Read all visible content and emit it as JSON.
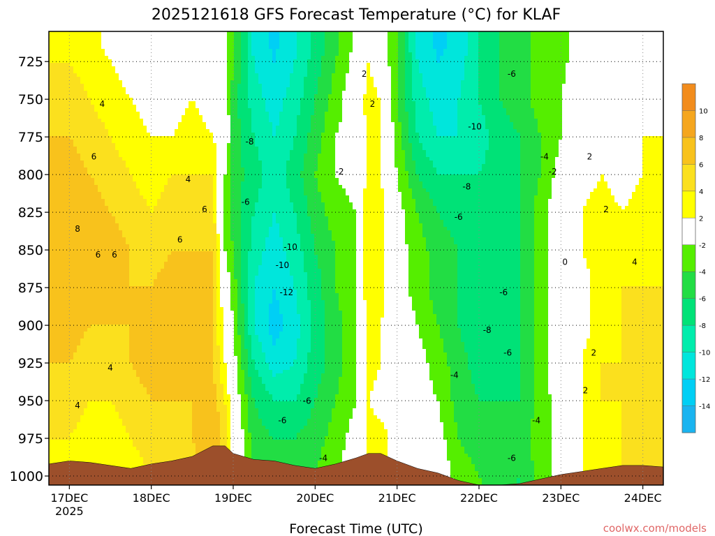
{
  "chart_data": {
    "type": "heatmap",
    "title": "2025121618 GFS Forecast Temperature (°C) for KLAF",
    "xlabel": "Forecast Time (UTC)",
    "ylabel": "",
    "credit": "coolwx.com/models",
    "x_ticks": [
      {
        "label": "17DEC",
        "sublabel": "2025",
        "day": 17
      },
      {
        "label": "18DEC",
        "sublabel": "",
        "day": 18
      },
      {
        "label": "19DEC",
        "sublabel": "",
        "day": 19
      },
      {
        "label": "20DEC",
        "sublabel": "",
        "day": 20
      },
      {
        "label": "21DEC",
        "sublabel": "",
        "day": 21
      },
      {
        "label": "22DEC",
        "sublabel": "",
        "day": 22
      },
      {
        "label": "23DEC",
        "sublabel": "",
        "day": 23
      },
      {
        "label": "24DEC",
        "sublabel": "",
        "day": 24
      }
    ],
    "xlim_days": [
      16.75,
      24.25
    ],
    "y_ticks": [
      725,
      750,
      775,
      800,
      825,
      850,
      875,
      900,
      925,
      950,
      975,
      1000
    ],
    "ylim_hpa": [
      705,
      1006
    ],
    "grid": true,
    "colorbar_ticks": [
      10,
      8,
      6,
      4,
      2,
      -2,
      -4,
      -6,
      -8,
      -10,
      -12,
      -14
    ],
    "colorbar_bins": [
      {
        "color": "#f28c1c"
      },
      {
        "color": "#f5a61e"
      },
      {
        "color": "#f8c21c"
      },
      {
        "color": "#fbe01e"
      },
      {
        "color": "#ffff00"
      },
      {
        "color": "#ffffff"
      },
      {
        "color": "#55ee00"
      },
      {
        "color": "#22dd44"
      },
      {
        "color": "#00e277"
      },
      {
        "color": "#00edac"
      },
      {
        "color": "#00e6dc"
      },
      {
        "color": "#00cff5"
      },
      {
        "color": "#1ab4f0"
      }
    ],
    "terrain_color": "#9c4f2b",
    "columns": [
      {
        "day": 16.75,
        "sfc": 992,
        "t": [
          4,
          5,
          6,
          7,
          8,
          8,
          8,
          7,
          6,
          5,
          4,
          3
        ]
      },
      {
        "day": 17.0,
        "sfc": 990,
        "t": [
          4,
          5,
          6,
          7,
          7,
          8,
          7,
          7,
          6,
          5,
          4,
          3
        ]
      },
      {
        "day": 17.25,
        "sfc": 991,
        "t": [
          3,
          4,
          5,
          6,
          7,
          7,
          7,
          6,
          5,
          4,
          3,
          2
        ]
      },
      {
        "day": 17.5,
        "sfc": 993,
        "t": [
          2,
          3,
          4,
          5,
          6,
          7,
          6,
          6,
          5,
          4,
          3,
          2
        ]
      },
      {
        "day": 17.75,
        "sfc": 995,
        "t": [
          1,
          2,
          3,
          4,
          5,
          6,
          6,
          6,
          6,
          5,
          4,
          3
        ]
      },
      {
        "day": 18.0,
        "sfc": 992,
        "t": [
          1,
          1,
          2,
          3,
          4,
          5,
          6,
          6,
          7,
          6,
          5,
          4
        ]
      },
      {
        "day": 18.25,
        "sfc": 990,
        "t": [
          1,
          1,
          2,
          4,
          5,
          6,
          7,
          7,
          7,
          6,
          5,
          4
        ]
      },
      {
        "day": 18.5,
        "sfc": 987,
        "t": [
          2,
          2,
          3,
          4,
          5,
          6,
          7,
          7,
          7,
          6,
          6,
          5
        ]
      },
      {
        "day": 18.75,
        "sfc": 980,
        "t": [
          1,
          1,
          2,
          4,
          5,
          6,
          6,
          6,
          6,
          7,
          8,
          8
        ]
      },
      {
        "day": 18.9,
        "sfc": 980,
        "t": [
          -1,
          0,
          1,
          -2,
          -3,
          -2,
          0,
          1,
          2,
          4,
          5,
          6
        ]
      },
      {
        "day": 19.0,
        "sfc": 985,
        "t": [
          -4,
          -5,
          -5,
          -5,
          -5,
          -4,
          -3,
          -2,
          -1,
          0,
          1,
          1
        ]
      },
      {
        "day": 19.25,
        "sfc": 989,
        "t": [
          -10,
          -9,
          -8,
          -7,
          -8,
          -9,
          -10,
          -10,
          -8,
          -6,
          -5,
          -4
        ]
      },
      {
        "day": 19.5,
        "sfc": 990,
        "t": [
          -12,
          -11,
          -10,
          -9,
          -10,
          -11,
          -12,
          -13,
          -11,
          -8,
          -6,
          -5
        ]
      },
      {
        "day": 19.75,
        "sfc": 993,
        "t": [
          -10,
          -9,
          -8,
          -7,
          -8,
          -9,
          -10,
          -11,
          -10,
          -8,
          -6,
          -5
        ]
      },
      {
        "day": 20.0,
        "sfc": 995,
        "t": [
          -7,
          -6,
          -5,
          -4,
          -5,
          -6,
          -7,
          -7,
          -7,
          -6,
          -5,
          -4
        ]
      },
      {
        "day": 20.25,
        "sfc": 992,
        "t": [
          -4,
          -3,
          -2,
          -2,
          -3,
          -4,
          -4,
          -5,
          -5,
          -4,
          -3,
          -2
        ]
      },
      {
        "day": 20.5,
        "sfc": 988,
        "t": [
          -1,
          0,
          -1,
          -1,
          -2,
          -2,
          -2,
          -2,
          -2,
          -2,
          -1,
          -1
        ]
      },
      {
        "day": 20.65,
        "sfc": 985,
        "t": [
          2,
          3,
          3,
          3,
          4,
          4,
          4,
          3,
          3,
          2,
          3,
          3
        ]
      },
      {
        "day": 20.8,
        "sfc": 985,
        "t": [
          0,
          2,
          2,
          2,
          3,
          3,
          3,
          2,
          2,
          1,
          3,
          3
        ]
      },
      {
        "day": 21.0,
        "sfc": 990,
        "t": [
          -4,
          -4,
          -3,
          -2,
          -1,
          -1,
          -1,
          0,
          0,
          0,
          1,
          1
        ]
      },
      {
        "day": 21.25,
        "sfc": 995,
        "t": [
          -10,
          -9,
          -8,
          -6,
          -4,
          -3,
          -3,
          -2,
          -1,
          -1,
          0,
          0
        ]
      },
      {
        "day": 21.5,
        "sfc": 998,
        "t": [
          -12,
          -11,
          -10,
          -8,
          -6,
          -5,
          -5,
          -4,
          -3,
          -2,
          -1,
          0
        ]
      },
      {
        "day": 21.75,
        "sfc": 1003,
        "t": [
          -11,
          -10,
          -10,
          -8,
          -7,
          -6,
          -6,
          -6,
          -5,
          -5,
          -4,
          -3
        ]
      },
      {
        "day": 22.0,
        "sfc": 1006,
        "t": [
          -8,
          -8,
          -9,
          -8,
          -7,
          -7,
          -7,
          -8,
          -7,
          -6,
          -5,
          -4
        ]
      },
      {
        "day": 22.25,
        "sfc": 1006,
        "t": [
          -6,
          -6,
          -7,
          -7,
          -7,
          -7,
          -7,
          -8,
          -7,
          -6,
          -5,
          -5
        ]
      },
      {
        "day": 22.5,
        "sfc": 1005,
        "t": [
          -5,
          -5,
          -6,
          -6,
          -6,
          -6,
          -6,
          -6,
          -6,
          -6,
          -5,
          -6
        ]
      },
      {
        "day": 22.75,
        "sfc": 1002,
        "t": [
          -3,
          -3,
          -4,
          -4,
          -3,
          -3,
          -3,
          -3,
          -3,
          -3,
          -3,
          -3
        ]
      },
      {
        "day": 23.0,
        "sfc": 999,
        "t": [
          -3,
          -2,
          -2,
          -1,
          0,
          0,
          0,
          0,
          0,
          -1,
          -1,
          -1
        ]
      },
      {
        "day": 23.25,
        "sfc": 997,
        "t": [
          0,
          1,
          0,
          1,
          2,
          2,
          1,
          1,
          2,
          2,
          2,
          2
        ]
      },
      {
        "day": 23.5,
        "sfc": 995,
        "t": [
          1,
          2,
          2,
          2,
          3,
          3,
          3,
          3,
          4,
          4,
          3,
          3
        ]
      },
      {
        "day": 23.75,
        "sfc": 993,
        "t": [
          2,
          2,
          1,
          1,
          2,
          3,
          4,
          4,
          4,
          4,
          4,
          4
        ]
      },
      {
        "day": 24.0,
        "sfc": 993,
        "t": [
          1,
          2,
          2,
          2,
          3,
          3,
          4,
          4,
          4,
          4,
          5,
          5
        ]
      },
      {
        "day": 24.25,
        "sfc": 994,
        "t": [
          1,
          1,
          2,
          2,
          3,
          4,
          4,
          4,
          4,
          5,
          5,
          5
        ]
      }
    ]
  }
}
